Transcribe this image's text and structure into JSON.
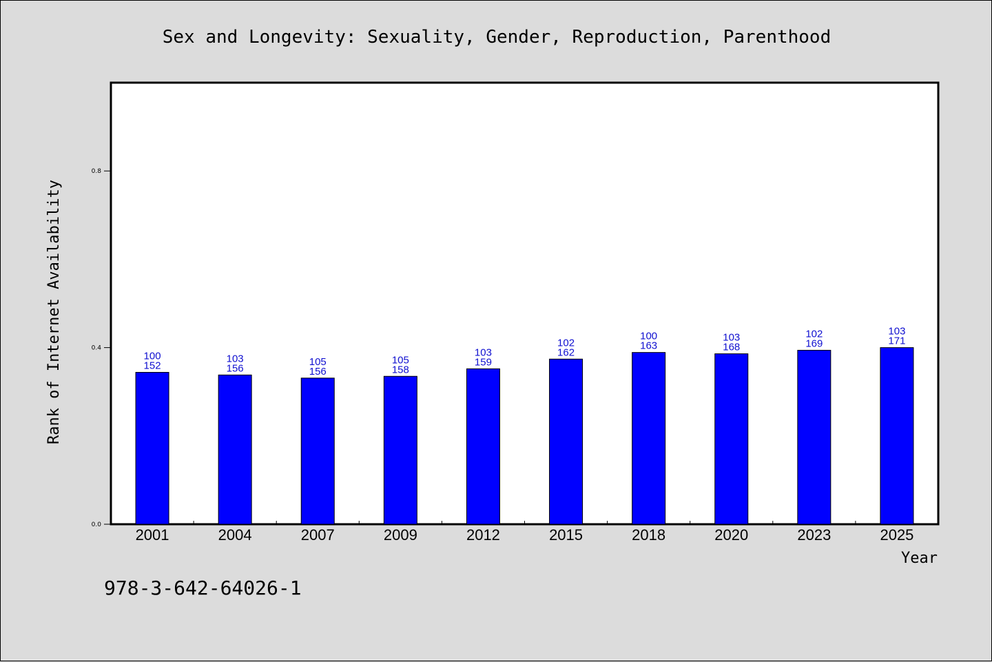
{
  "chart_data": {
    "type": "bar",
    "title": "Sex and Longevity: Sexuality, Gender, Reproduction, Parenthood",
    "xlabel": "Year",
    "ylabel": "Rank of Internet Availability",
    "categories": [
      "2001",
      "2004",
      "2007",
      "2009",
      "2012",
      "2015",
      "2018",
      "2020",
      "2023",
      "2025"
    ],
    "values": [
      0.344,
      0.338,
      0.331,
      0.335,
      0.352,
      0.374,
      0.389,
      0.386,
      0.394,
      0.4
    ],
    "labels_top": [
      "100",
      "103",
      "105",
      "105",
      "103",
      "102",
      "100",
      "103",
      "102",
      "103"
    ],
    "labels_bottom": [
      "152",
      "156",
      "156",
      "158",
      "159",
      "162",
      "163",
      "168",
      "169",
      "171"
    ],
    "ylim": [
      0.0,
      1.0
    ],
    "yticks": [
      0.0,
      0.4,
      0.8
    ],
    "ytick_labels": [
      "0.0",
      "0.4",
      "0.8"
    ],
    "bar_color": "#0000ff",
    "label_color": "#1010d0",
    "grid": false,
    "legend": "none"
  },
  "footer": {
    "isbn": "978-3-642-64026-1"
  }
}
